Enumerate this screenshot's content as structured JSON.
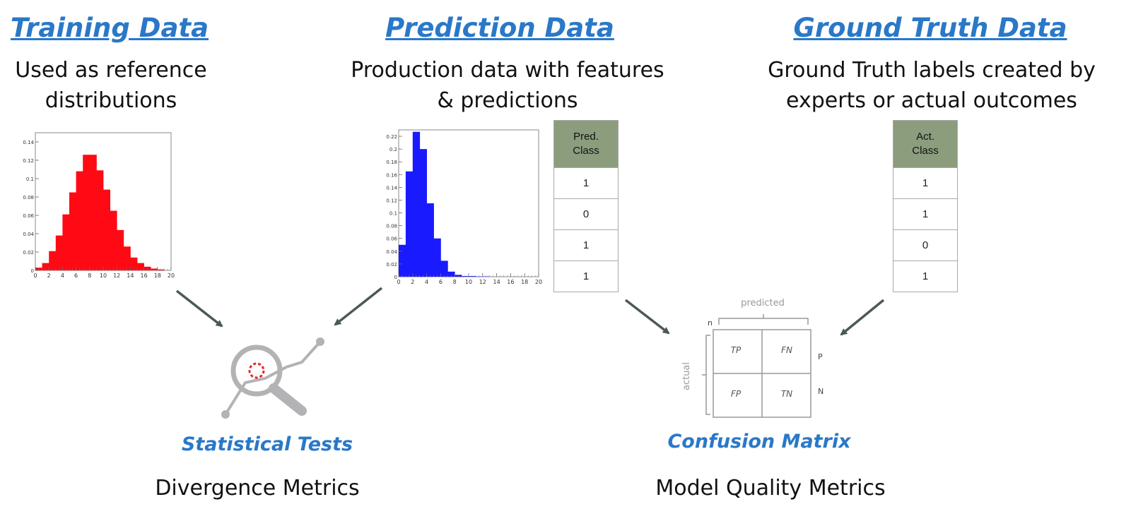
{
  "columns": {
    "training": {
      "heading": "Training Data",
      "desc_line1": "Used as reference",
      "desc_line2": "distributions"
    },
    "prediction": {
      "heading": "Prediction Data",
      "desc_line1": "Production data with features",
      "desc_line2": "& predictions"
    },
    "ground_truth": {
      "heading": "Ground Truth Data",
      "desc_line1": "Ground Truth labels created by",
      "desc_line2": "experts or actual outcomes"
    }
  },
  "pred_table": {
    "header_line1": "Pred.",
    "header_line2": "Class",
    "rows": [
      "1",
      "0",
      "1",
      "1"
    ]
  },
  "actual_table": {
    "header_line1": "Act.",
    "header_line2": "Class",
    "rows": [
      "1",
      "1",
      "0",
      "1"
    ]
  },
  "statistical_tests": {
    "label": "Statistical Tests",
    "metric": "Divergence Metrics"
  },
  "confusion_matrix": {
    "label": "Confusion Matrix",
    "metric": "Model Quality Metrics",
    "top_label": "predicted",
    "side_label": "actual",
    "corner_label": "n",
    "row_labels": [
      "P",
      "N"
    ],
    "cells": [
      [
        "TP",
        "FN"
      ],
      [
        "FP",
        "TN"
      ]
    ]
  },
  "chart_data": [
    {
      "type": "bar",
      "name": "training-histogram",
      "color": "#ff0a14",
      "x_bin_edges": [
        0,
        1,
        2,
        3,
        4,
        5,
        6,
        7,
        8,
        9,
        10,
        11,
        12,
        13,
        14,
        15,
        16,
        17,
        18,
        19,
        20
      ],
      "values": [
        0.003,
        0.008,
        0.021,
        0.038,
        0.061,
        0.085,
        0.108,
        0.126,
        0.126,
        0.109,
        0.088,
        0.065,
        0.044,
        0.026,
        0.014,
        0.008,
        0.004,
        0.002,
        0.001,
        0.0
      ],
      "xlim": [
        0,
        20
      ],
      "ylim": [
        0,
        0.15
      ],
      "x_ticks": [
        "0",
        "2",
        "4",
        "6",
        "8",
        "10",
        "12",
        "14",
        "16",
        "18",
        "20"
      ],
      "y_ticks": [
        "0",
        "0.02",
        "0.04",
        "0.06",
        "0.08",
        "0.1",
        "0.12",
        "0.14"
      ]
    },
    {
      "type": "bar",
      "name": "prediction-histogram",
      "color": "#1a1aff",
      "x_bin_edges": [
        0,
        1,
        2,
        3,
        4,
        5,
        6,
        7,
        8,
        9,
        10,
        11,
        12,
        13,
        14,
        15,
        16,
        17,
        18,
        19,
        20
      ],
      "values": [
        0.05,
        0.165,
        0.227,
        0.2,
        0.115,
        0.06,
        0.025,
        0.008,
        0.003,
        0.001,
        0.001,
        0.0005,
        0.0005,
        0,
        0,
        0,
        0,
        0,
        0,
        0
      ],
      "xlim": [
        0,
        20
      ],
      "ylim": [
        0,
        0.23
      ],
      "x_ticks": [
        "0",
        "2",
        "4",
        "6",
        "8",
        "10",
        "12",
        "14",
        "16",
        "18",
        "20"
      ],
      "y_ticks": [
        "0",
        "0.02",
        "0.04",
        "0.06",
        "0.08",
        "0.1",
        "0.12",
        "0.14",
        "0.16",
        "0.18",
        "0.2",
        "0.22"
      ]
    }
  ]
}
